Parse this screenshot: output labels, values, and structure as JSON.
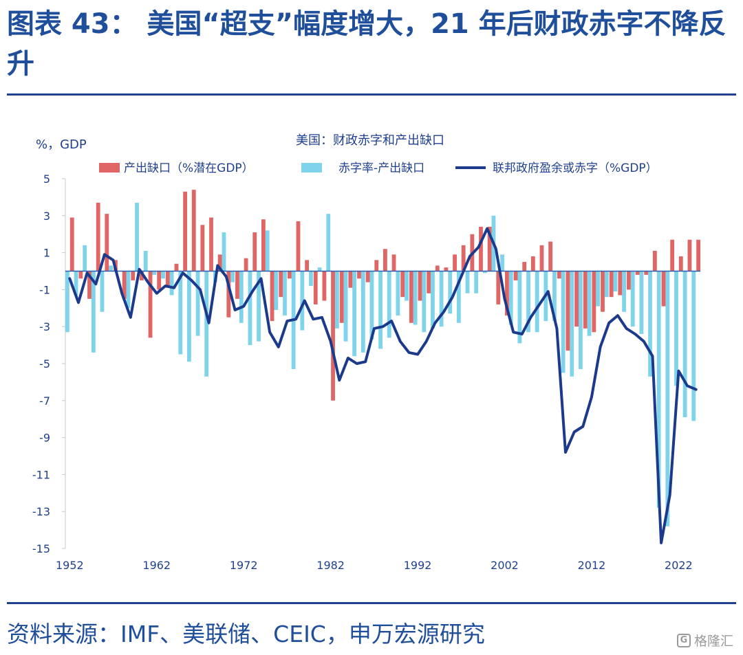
{
  "header": {
    "title": "图表 43：  美国“超支”幅度增大，21 年后财政赤字不降反升"
  },
  "footer": {
    "source": "资料来源：IMF、美联储、CEIC，申万宏源研究",
    "watermark": "格隆汇",
    "watermark_icon": "G-logo-icon"
  },
  "colors": {
    "output_gap": "#e06666",
    "residual": "#7fd4ec",
    "balance_line": "#1b3a8c",
    "axis_text": "#1f3f8f",
    "accent": "#1f4e9a"
  },
  "chart_data": {
    "type": "bar",
    "title": "美国：财政赤字和产出缺口",
    "ylabel": "%，GDP",
    "xlabel": "",
    "ylim": [
      -15,
      5
    ],
    "yticks": [
      5,
      3,
      1,
      -1,
      -3,
      -5,
      -7,
      -9,
      -11,
      -13,
      -15
    ],
    "xticks": [
      "1952",
      "1962",
      "1972",
      "1982",
      "1992",
      "2002",
      "2012",
      "2022"
    ],
    "legend_position": "top",
    "x": [
      1952,
      1953,
      1954,
      1955,
      1956,
      1957,
      1958,
      1959,
      1960,
      1961,
      1962,
      1963,
      1964,
      1965,
      1966,
      1967,
      1968,
      1969,
      1970,
      1971,
      1972,
      1973,
      1974,
      1975,
      1976,
      1977,
      1978,
      1979,
      1980,
      1981,
      1982,
      1983,
      1984,
      1985,
      1986,
      1987,
      1988,
      1989,
      1990,
      1991,
      1992,
      1993,
      1994,
      1995,
      1996,
      1997,
      1998,
      1999,
      2000,
      2001,
      2002,
      2003,
      2004,
      2005,
      2006,
      2007,
      2008,
      2009,
      2010,
      2011,
      2012,
      2013,
      2014,
      2015,
      2016,
      2017,
      2018,
      2019,
      2020,
      2021,
      2022,
      2023,
      2024
    ],
    "series": [
      {
        "name": "产出缺口（%潜在GDP）",
        "type": "bar",
        "values": [
          2.9,
          -0.4,
          -1.5,
          3.7,
          3.1,
          0.6,
          -1.5,
          -0.5,
          -0.5,
          -3.6,
          -1.0,
          -0.9,
          0.4,
          4.3,
          4.4,
          2.5,
          2.9,
          0.9,
          -2.5,
          -1.5,
          0.7,
          2.1,
          2.8,
          -2.7,
          -1.4,
          -0.4,
          2.7,
          0.6,
          -1.8,
          -1.6,
          -7.0,
          -2.8,
          -0.9,
          -0.4,
          -0.6,
          0.6,
          1.2,
          0.9,
          -1.4,
          -2.8,
          -1.6,
          -1.2,
          0.3,
          0.2,
          0.9,
          1.4,
          2.0,
          2.4,
          2.4,
          -1.8,
          -2.4,
          -0.5,
          0.5,
          0.8,
          1.4,
          1.6,
          -0.4,
          -4.3,
          -3.0,
          -3.1,
          -3.3,
          -2.2,
          -1.4,
          -1.3,
          -1.0,
          -0.2,
          -0.2,
          1.1,
          -1.9,
          1.7,
          0.8,
          1.7,
          1.7
        ]
      },
      {
        "name": "赤字率-产出缺口",
        "type": "bar",
        "values": [
          -3.3,
          -1.3,
          1.4,
          -4.4,
          -2.2,
          0.3,
          0.0,
          -2.0,
          3.7,
          1.1,
          -0.2,
          -0.4,
          -1.3,
          -4.5,
          -4.9,
          -3.5,
          -5.7,
          -0.6,
          2.1,
          -0.6,
          -2.8,
          -4.0,
          -3.8,
          2.2,
          -2.1,
          -2.4,
          -5.3,
          -3.2,
          -0.8,
          0.2,
          3.1,
          -3.1,
          -3.8,
          -4.6,
          -4.4,
          -3.7,
          -4.2,
          -3.6,
          -2.4,
          -1.6,
          -2.9,
          -3.3,
          -3.1,
          -3.0,
          -2.3,
          -2.8,
          -1.2,
          -1.2,
          -0.1,
          3.0,
          0.9,
          -2.9,
          -3.9,
          -3.3,
          -3.3,
          -2.7,
          -2.7,
          -5.5,
          -5.7,
          -5.3,
          -3.5,
          -1.9,
          -1.4,
          -1.1,
          -2.2,
          -3.0,
          -3.4,
          -5.7,
          -12.8,
          -13.8,
          -6.2,
          -7.9,
          -8.1
        ]
      },
      {
        "name": "联邦政府盈余或赤字（%GDP）",
        "type": "line",
        "values": [
          -0.4,
          -1.7,
          -0.1,
          -0.7,
          0.9,
          0.6,
          -1.2,
          -2.5,
          0.1,
          -0.6,
          -1.2,
          -0.8,
          -0.9,
          -0.1,
          -0.5,
          -1.0,
          -2.8,
          0.3,
          -0.3,
          -2.1,
          -1.9,
          -1.1,
          -0.4,
          -3.3,
          -4.1,
          -2.7,
          -2.6,
          -1.6,
          -2.6,
          -2.5,
          -3.8,
          -5.9,
          -4.7,
          -5.0,
          -4.9,
          -3.1,
          -3.0,
          -2.7,
          -3.8,
          -4.4,
          -4.5,
          -3.8,
          -2.8,
          -2.2,
          -1.4,
          -0.3,
          0.8,
          1.3,
          2.3,
          1.2,
          -1.5,
          -3.3,
          -3.4,
          -2.5,
          -1.8,
          -1.1,
          -3.1,
          -9.8,
          -8.7,
          -8.4,
          -6.8,
          -4.1,
          -2.8,
          -2.4,
          -3.1,
          -3.4,
          -3.8,
          -4.6,
          -14.7,
          -12.1,
          -5.4,
          -6.2,
          -6.4
        ]
      }
    ]
  }
}
